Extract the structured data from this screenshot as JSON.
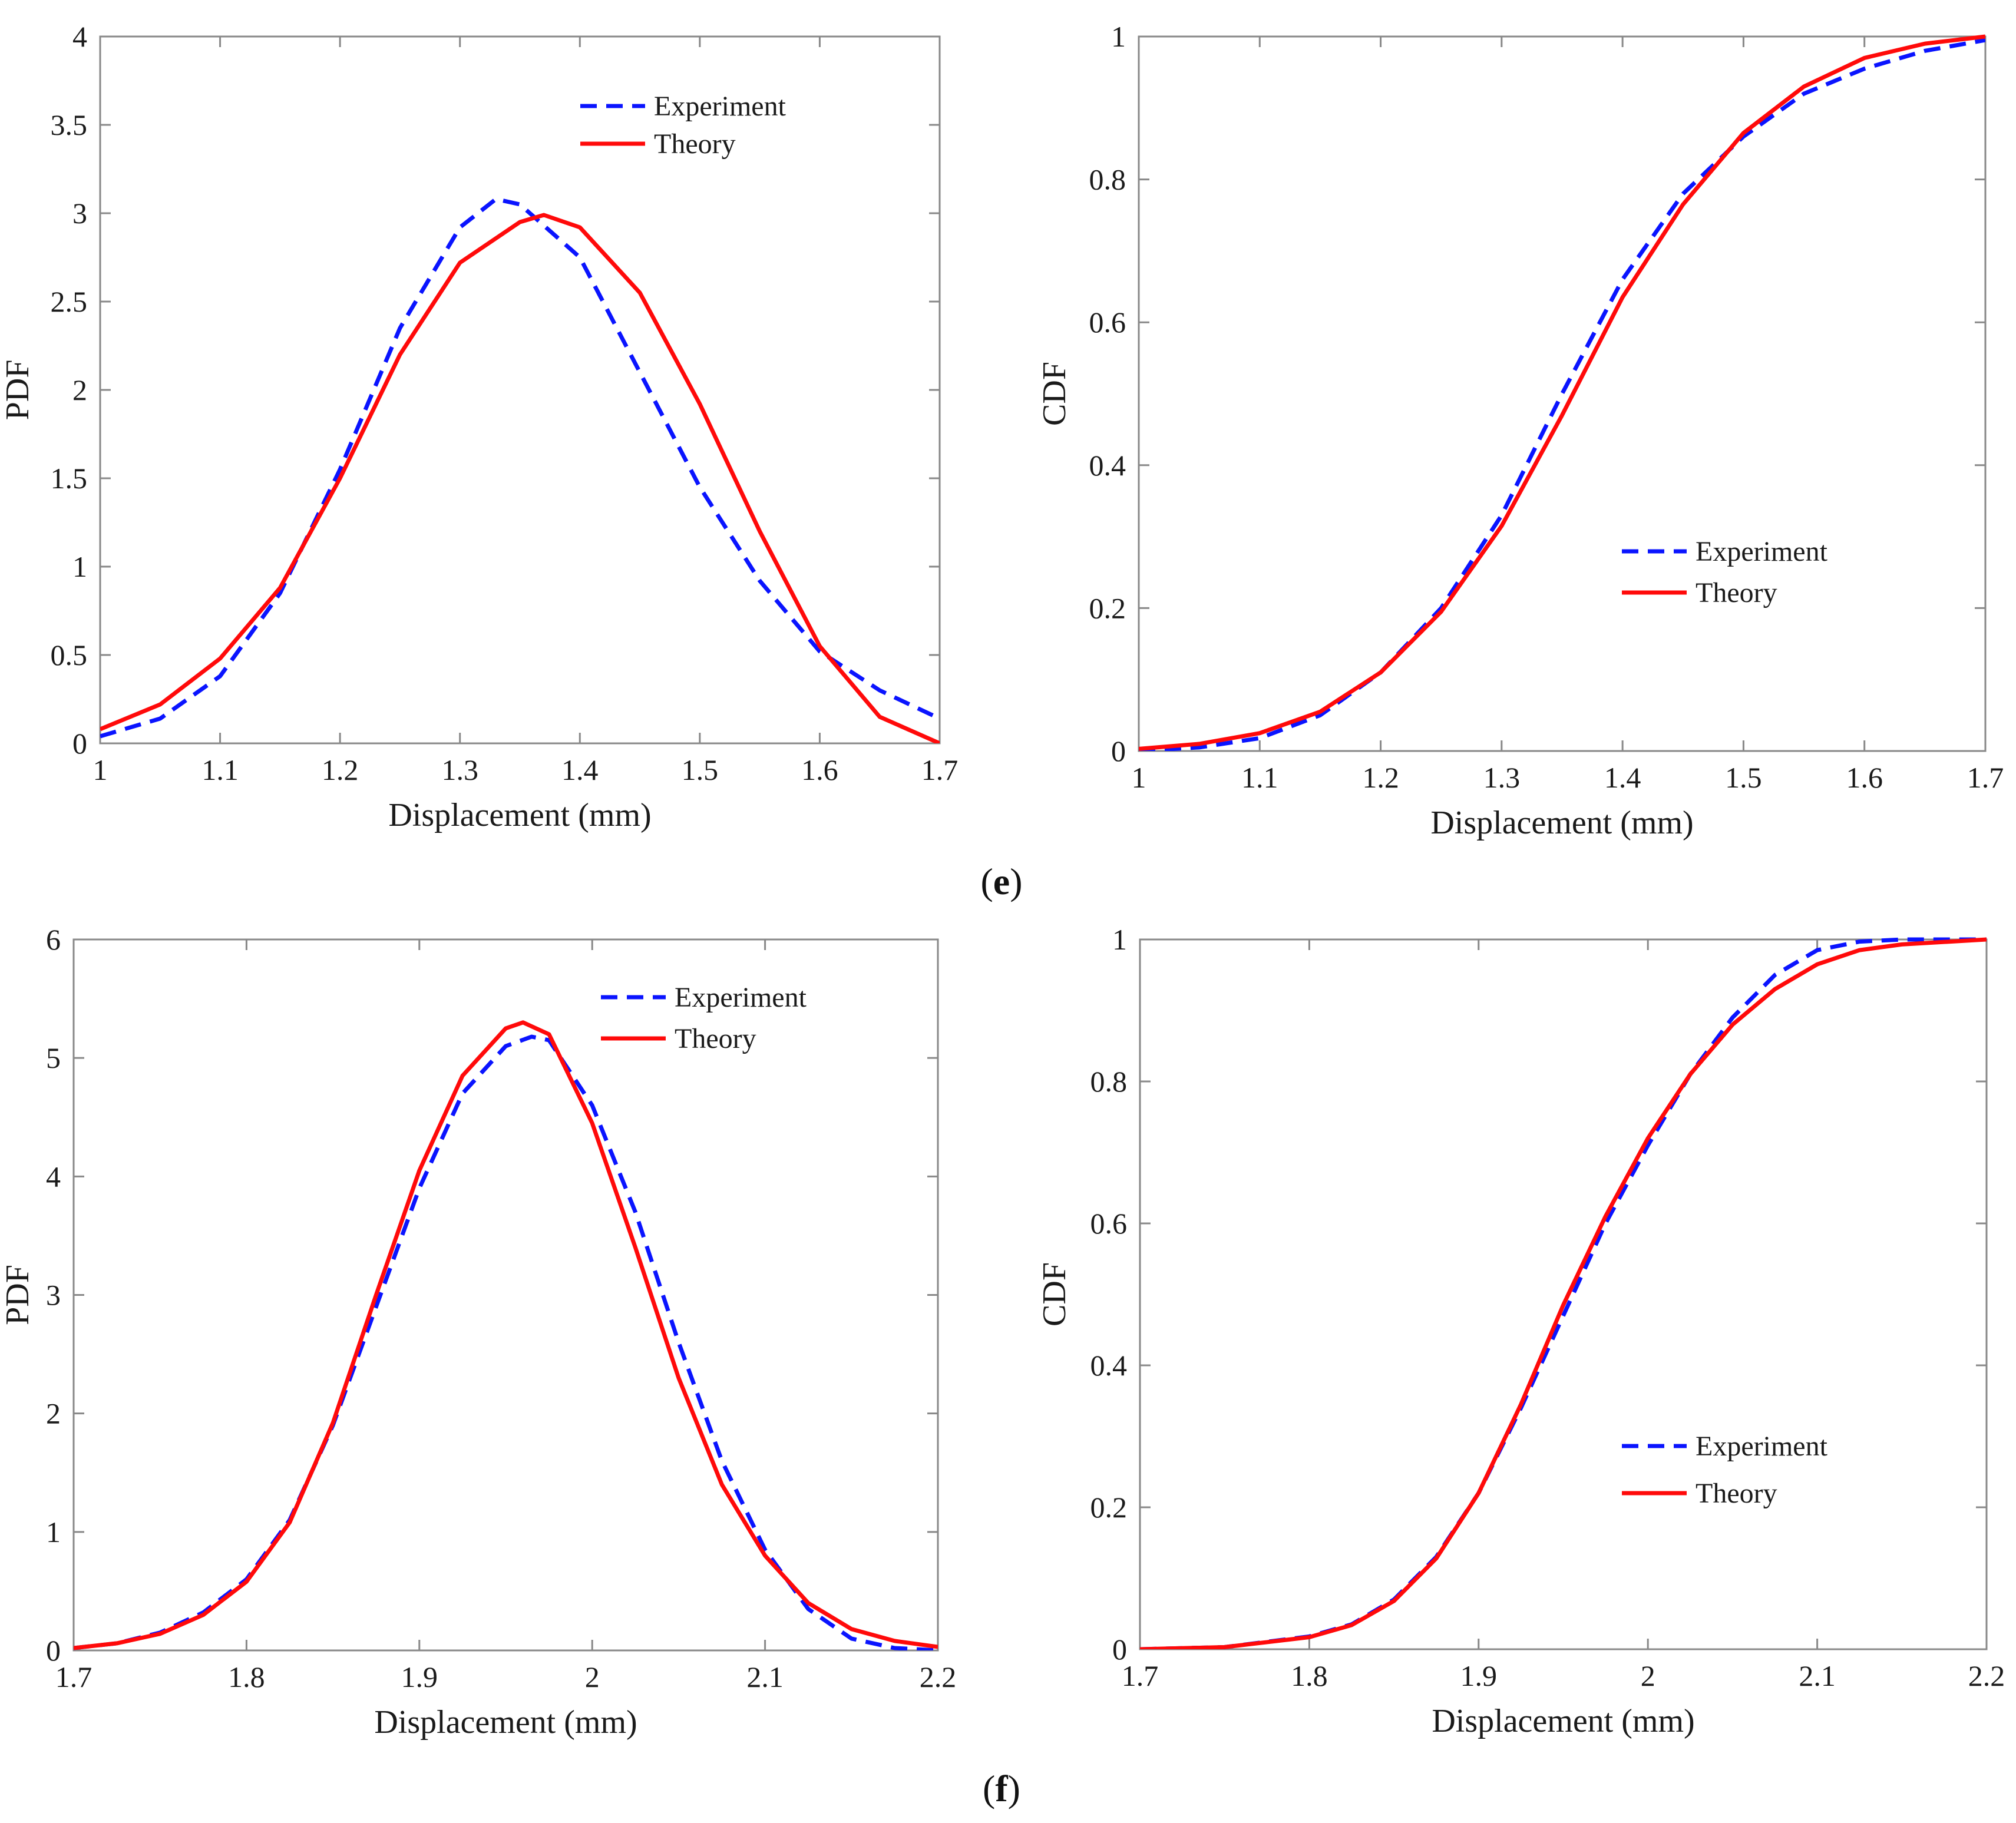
{
  "figure": {
    "panel_labels": [
      {
        "open": "(",
        "letter": "e",
        "close": ")"
      },
      {
        "open": "(",
        "letter": "f",
        "close": ")"
      }
    ]
  },
  "colors": {
    "experiment": "#0a14ff",
    "theory": "#ff0a0a",
    "axis": "#888888"
  },
  "chart_data": [
    {
      "type": "line",
      "title": "",
      "xlabel": "Displacement (mm)",
      "ylabel": "PDF",
      "xlim": [
        1,
        1.7
      ],
      "ylim": [
        0,
        4
      ],
      "xticks": [
        1,
        1.1,
        1.2,
        1.3,
        1.4,
        1.5,
        1.6,
        1.7
      ],
      "xtick_labels": [
        "1",
        "1.1",
        "1.2",
        "1.3",
        "1.4",
        "1.5",
        "1.6",
        "1.7"
      ],
      "yticks": [
        0,
        0.5,
        1,
        1.5,
        2,
        2.5,
        3,
        3.5,
        4
      ],
      "ytick_labels": [
        "0",
        "0.5",
        "1",
        "1.5",
        "2",
        "2.5",
        "3",
        "3.5",
        "4"
      ],
      "legend_position": "top-right",
      "series": [
        {
          "name": "Experiment",
          "style": "dashed",
          "x": [
            1.0,
            1.05,
            1.1,
            1.15,
            1.2,
            1.25,
            1.3,
            1.33,
            1.35,
            1.4,
            1.45,
            1.5,
            1.55,
            1.6,
            1.65,
            1.7
          ],
          "y": [
            0.04,
            0.14,
            0.38,
            0.85,
            1.55,
            2.35,
            2.92,
            3.08,
            3.05,
            2.75,
            2.1,
            1.45,
            0.92,
            0.52,
            0.3,
            0.14
          ]
        },
        {
          "name": "Theory",
          "style": "solid",
          "x": [
            1.0,
            1.05,
            1.1,
            1.15,
            1.2,
            1.25,
            1.3,
            1.35,
            1.37,
            1.4,
            1.45,
            1.5,
            1.55,
            1.6,
            1.65,
            1.7
          ],
          "y": [
            0.08,
            0.22,
            0.48,
            0.88,
            1.5,
            2.2,
            2.72,
            2.95,
            2.99,
            2.92,
            2.55,
            1.92,
            1.2,
            0.55,
            0.15,
            0.0
          ]
        }
      ]
    },
    {
      "type": "line",
      "title": "",
      "xlabel": "Displacement (mm)",
      "ylabel": "CDF",
      "xlim": [
        1,
        1.7
      ],
      "ylim": [
        0,
        1
      ],
      "xticks": [
        1,
        1.1,
        1.2,
        1.3,
        1.4,
        1.5,
        1.6,
        1.7
      ],
      "xtick_labels": [
        "1",
        "1.1",
        "1.2",
        "1.3",
        "1.4",
        "1.5",
        "1.6",
        "1.7"
      ],
      "yticks": [
        0,
        0.2,
        0.4,
        0.6,
        0.8,
        1
      ],
      "ytick_labels": [
        "0",
        "0.2",
        "0.4",
        "0.6",
        "0.8",
        "1"
      ],
      "legend_position": "center-right",
      "series": [
        {
          "name": "Experiment",
          "style": "dashed",
          "x": [
            1.0,
            1.05,
            1.1,
            1.15,
            1.2,
            1.25,
            1.3,
            1.35,
            1.4,
            1.45,
            1.5,
            1.55,
            1.6,
            1.65,
            1.7
          ],
          "y": [
            0.0,
            0.005,
            0.018,
            0.05,
            0.11,
            0.2,
            0.33,
            0.5,
            0.66,
            0.78,
            0.86,
            0.92,
            0.955,
            0.98,
            0.995
          ]
        },
        {
          "name": "Theory",
          "style": "solid",
          "x": [
            1.0,
            1.05,
            1.1,
            1.15,
            1.2,
            1.25,
            1.3,
            1.35,
            1.4,
            1.45,
            1.5,
            1.55,
            1.6,
            1.65,
            1.7
          ],
          "y": [
            0.003,
            0.01,
            0.025,
            0.055,
            0.11,
            0.195,
            0.315,
            0.47,
            0.635,
            0.765,
            0.865,
            0.93,
            0.97,
            0.99,
            1.0
          ]
        }
      ]
    },
    {
      "type": "line",
      "title": "",
      "xlabel": "Displacement (mm)",
      "ylabel": "PDF",
      "xlim": [
        1.7,
        2.2
      ],
      "ylim": [
        0,
        6
      ],
      "xticks": [
        1.7,
        1.8,
        1.9,
        2.0,
        2.1,
        2.2
      ],
      "xtick_labels": [
        "1.7",
        "1.8",
        "1.9",
        "2",
        "2.1",
        "2.2"
      ],
      "yticks": [
        0,
        1,
        2,
        3,
        4,
        5,
        6
      ],
      "ytick_labels": [
        "0",
        "1",
        "2",
        "3",
        "4",
        "5",
        "6"
      ],
      "legend_position": "top-right",
      "series": [
        {
          "name": "Experiment",
          "style": "dashed",
          "x": [
            1.7,
            1.725,
            1.75,
            1.775,
            1.8,
            1.825,
            1.85,
            1.875,
            1.9,
            1.925,
            1.95,
            1.965,
            1.975,
            2.0,
            2.025,
            2.05,
            2.075,
            2.1,
            2.125,
            2.15,
            2.175,
            2.2
          ],
          "y": [
            0.02,
            0.06,
            0.15,
            0.32,
            0.6,
            1.1,
            1.9,
            2.9,
            3.9,
            4.7,
            5.1,
            5.18,
            5.15,
            4.6,
            3.7,
            2.6,
            1.6,
            0.85,
            0.35,
            0.1,
            0.02,
            0.0
          ]
        },
        {
          "name": "Theory",
          "style": "solid",
          "x": [
            1.7,
            1.725,
            1.75,
            1.775,
            1.8,
            1.825,
            1.85,
            1.875,
            1.9,
            1.925,
            1.95,
            1.96,
            1.975,
            2.0,
            2.025,
            2.05,
            2.075,
            2.1,
            2.125,
            2.15,
            2.175,
            2.2
          ],
          "y": [
            0.02,
            0.06,
            0.14,
            0.3,
            0.58,
            1.08,
            1.92,
            3.0,
            4.05,
            4.85,
            5.25,
            5.3,
            5.2,
            4.45,
            3.4,
            2.3,
            1.4,
            0.8,
            0.4,
            0.18,
            0.08,
            0.03
          ]
        }
      ]
    },
    {
      "type": "line",
      "title": "",
      "xlabel": "Displacement (mm)",
      "ylabel": "CDF",
      "xlim": [
        1.7,
        2.2
      ],
      "ylim": [
        0,
        1
      ],
      "xticks": [
        1.7,
        1.8,
        1.9,
        2.0,
        2.1,
        2.2
      ],
      "xtick_labels": [
        "1.7",
        "1.8",
        "1.9",
        "2",
        "2.1",
        "2.2"
      ],
      "yticks": [
        0,
        0.2,
        0.4,
        0.6,
        0.8,
        1
      ],
      "ytick_labels": [
        "0",
        "0.2",
        "0.4",
        "0.6",
        "0.8",
        "1"
      ],
      "legend_position": "center-right",
      "series": [
        {
          "name": "Experiment",
          "style": "dashed",
          "x": [
            1.7,
            1.75,
            1.8,
            1.825,
            1.85,
            1.875,
            1.9,
            1.925,
            1.95,
            1.975,
            2.0,
            2.025,
            2.05,
            2.075,
            2.1,
            2.125,
            2.15,
            2.2
          ],
          "y": [
            0.0,
            0.003,
            0.018,
            0.035,
            0.07,
            0.13,
            0.22,
            0.34,
            0.47,
            0.6,
            0.71,
            0.81,
            0.89,
            0.95,
            0.985,
            0.997,
            1.0,
            1.0
          ]
        },
        {
          "name": "Theory",
          "style": "solid",
          "x": [
            1.7,
            1.75,
            1.8,
            1.825,
            1.85,
            1.875,
            1.9,
            1.925,
            1.95,
            1.975,
            2.0,
            2.025,
            2.05,
            2.075,
            2.1,
            2.125,
            2.15,
            2.2
          ],
          "y": [
            0.0,
            0.003,
            0.017,
            0.034,
            0.068,
            0.128,
            0.22,
            0.345,
            0.485,
            0.61,
            0.72,
            0.81,
            0.88,
            0.93,
            0.965,
            0.985,
            0.993,
            1.0
          ]
        }
      ]
    }
  ]
}
